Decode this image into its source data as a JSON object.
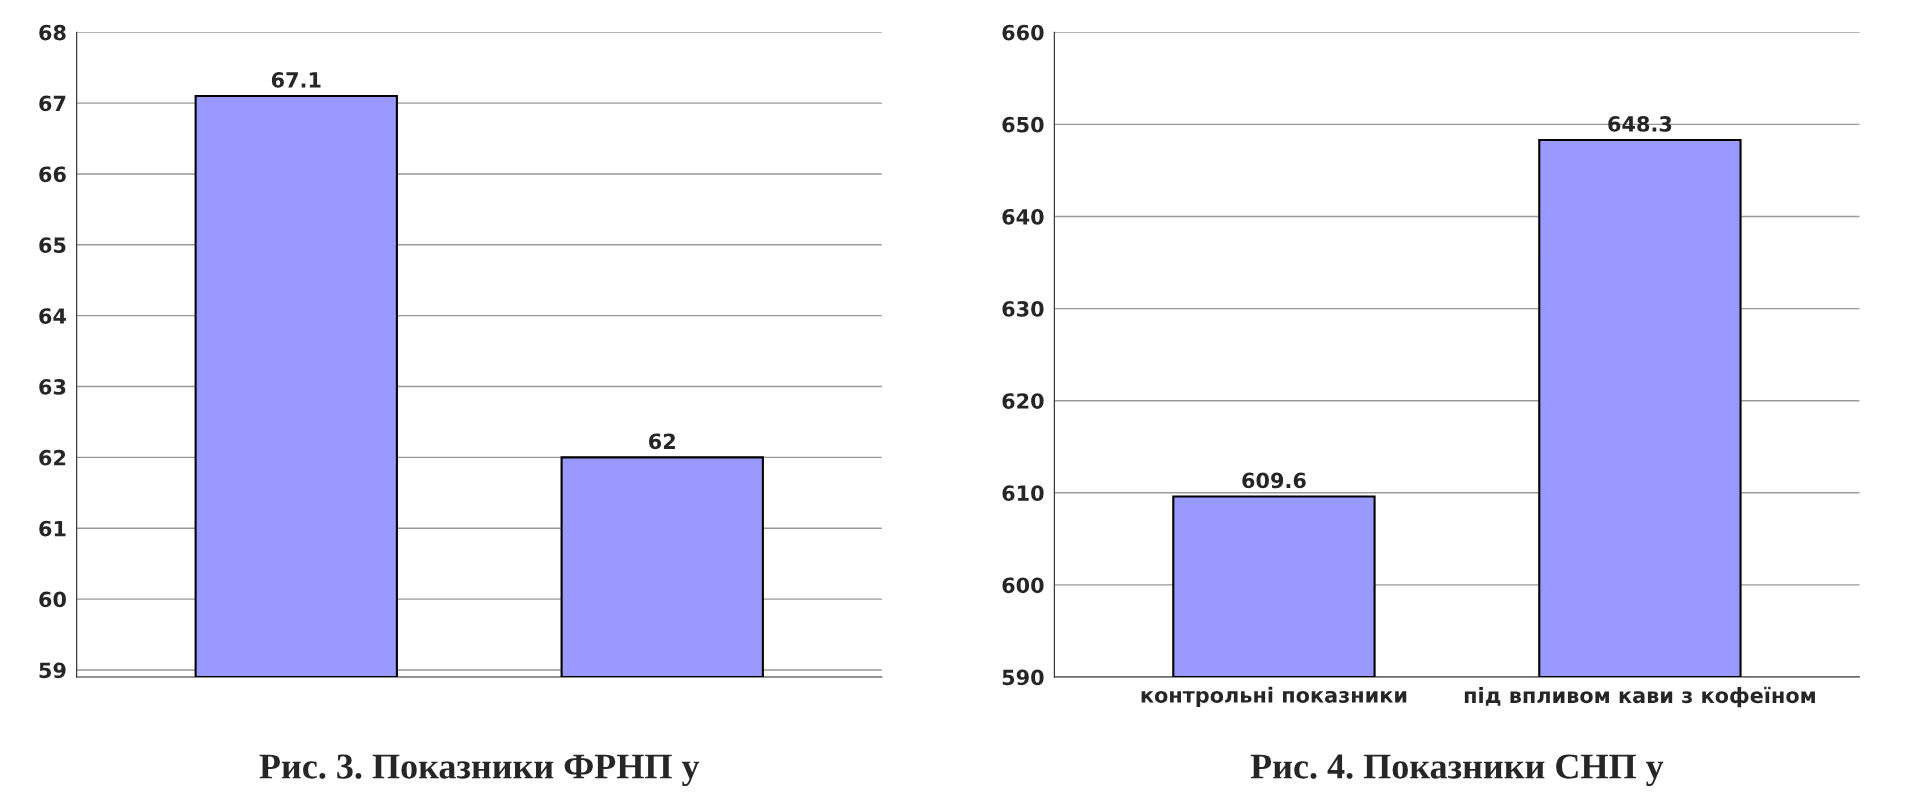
{
  "chart_data": [
    {
      "type": "bar",
      "title": "Рис. 3. Показники ФРНП у",
      "categories": [
        null,
        null
      ],
      "values": [
        67.1,
        62
      ],
      "color": "#9999ff",
      "ylim": [
        58.9,
        68
      ],
      "yticks": [
        59,
        60,
        61,
        62,
        63,
        64,
        65,
        66,
        67,
        68
      ],
      "grid": "y",
      "data_labels": true
    },
    {
      "type": "bar",
      "title": "Рис. 4. Показники СНП у",
      "categories": [
        "контрольні показники",
        "під впливом кави з кофеїном"
      ],
      "values": [
        609.6,
        648.3
      ],
      "color": "#9999ff",
      "ylim": [
        590,
        660
      ],
      "yticks": [
        590,
        600,
        610,
        620,
        630,
        640,
        650,
        660
      ],
      "grid": "y",
      "data_labels": true
    }
  ]
}
